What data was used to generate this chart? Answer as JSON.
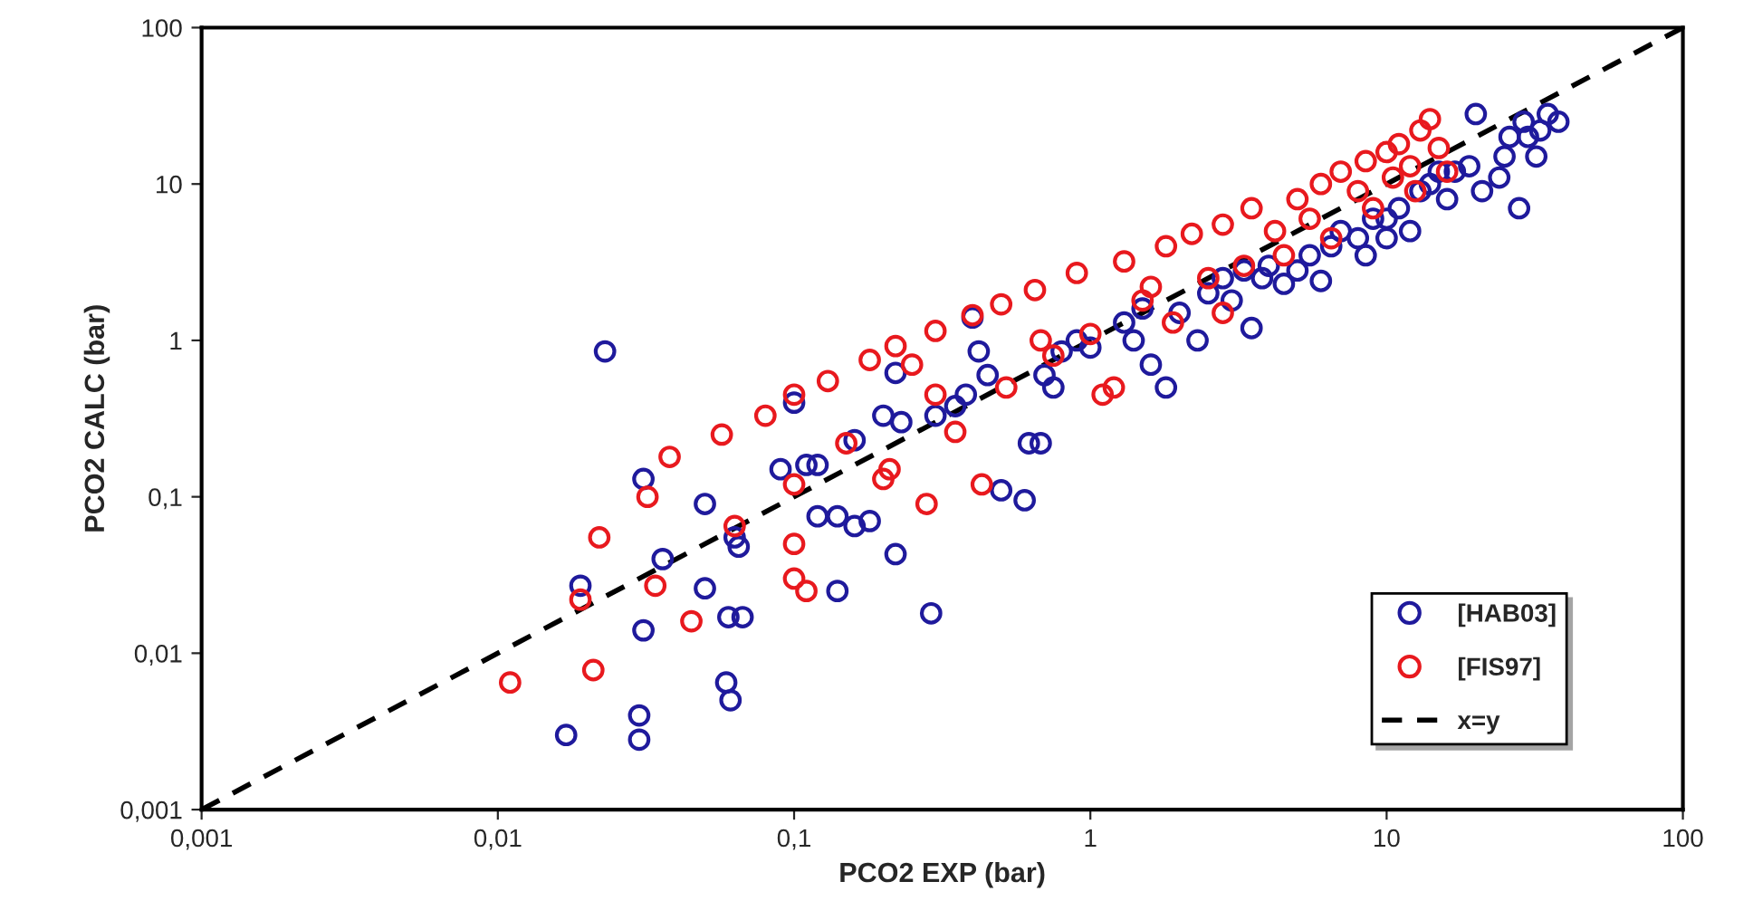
{
  "chart_data": {
    "type": "scatter",
    "xlabel": "PCO2 EXP (bar)",
    "ylabel": "PCO2 CALC (bar)",
    "log": "xy",
    "grid": false,
    "legend": "bottom right",
    "marker": "circle",
    "xlim": [
      0.001,
      100
    ],
    "ylim": [
      0.001,
      100
    ],
    "xticks": [
      {
        "value": 0.001,
        "label": "0,001"
      },
      {
        "value": 0.01,
        "label": "0,01"
      },
      {
        "value": 0.1,
        "label": "0,1"
      },
      1,
      10,
      100
    ],
    "yticks": [
      {
        "value": 0.001,
        "label": "0,001"
      },
      {
        "value": 0.01,
        "label": "0,01"
      },
      {
        "value": 0.1,
        "label": "0,1"
      },
      1,
      10,
      100
    ],
    "series": [
      {
        "name": "[HAB03]",
        "color": "#1f1a9c",
        "x": [
          0.023,
          0.017,
          0.03,
          0.03,
          0.019,
          0.031,
          0.031,
          0.036,
          0.05,
          0.05,
          0.059,
          0.061,
          0.06,
          0.067,
          0.063,
          0.065,
          0.09,
          0.1,
          0.11,
          0.12,
          0.12,
          0.14,
          0.14,
          0.16,
          0.16,
          0.18,
          0.2,
          0.22,
          0.22,
          0.23,
          0.29,
          0.3,
          0.35,
          0.38,
          0.4,
          0.42,
          0.45,
          0.5,
          0.6,
          0.62,
          0.68,
          0.7,
          0.75,
          0.8,
          0.9,
          1.0,
          1.3,
          1.4,
          1.5,
          1.6,
          1.8,
          2.0,
          2.3,
          2.5,
          2.8,
          3.0,
          3.3,
          3.5,
          3.8,
          4,
          4.5,
          5,
          5.5,
          6,
          6.5,
          7,
          8,
          8.5,
          9,
          10,
          10,
          11,
          12,
          13,
          14,
          15,
          16,
          17,
          19,
          20,
          21,
          24,
          25,
          26,
          28,
          29,
          30,
          32,
          33,
          35,
          38
        ],
        "values": [
          0.85,
          0.003,
          0.0028,
          0.004,
          0.027,
          0.014,
          0.13,
          0.04,
          0.09,
          0.026,
          0.0065,
          0.005,
          0.017,
          0.017,
          0.055,
          0.048,
          0.15,
          0.4,
          0.16,
          0.075,
          0.16,
          0.075,
          0.025,
          0.23,
          0.065,
          0.07,
          0.33,
          0.62,
          0.043,
          0.3,
          0.018,
          0.33,
          0.38,
          0.45,
          1.4,
          0.85,
          0.6,
          0.11,
          0.095,
          0.22,
          0.22,
          0.6,
          0.5,
          0.85,
          1.0,
          0.9,
          1.3,
          1.0,
          1.6,
          0.7,
          0.5,
          1.5,
          1.0,
          2.0,
          2.5,
          1.8,
          2.8,
          1.2,
          2.5,
          3,
          2.3,
          2.8,
          3.5,
          2.4,
          4,
          5,
          4.5,
          3.5,
          6,
          4.5,
          6,
          7,
          5,
          9,
          10,
          12,
          8,
          12,
          13,
          28,
          9,
          11,
          15,
          20,
          7,
          25,
          20,
          15,
          22,
          28,
          25
        ]
      },
      {
        "name": "[FIS97]",
        "color": "#e8191e",
        "x": [
          0.011,
          0.019,
          0.021,
          0.022,
          0.032,
          0.034,
          0.038,
          0.045,
          0.057,
          0.063,
          0.08,
          0.1,
          0.1,
          0.1,
          0.1,
          0.11,
          0.13,
          0.15,
          0.18,
          0.2,
          0.21,
          0.22,
          0.25,
          0.28,
          0.3,
          0.3,
          0.35,
          0.4,
          0.43,
          0.5,
          0.52,
          0.65,
          0.68,
          0.75,
          0.9,
          1.0,
          1.1,
          1.2,
          1.3,
          1.5,
          1.6,
          1.8,
          1.9,
          2.2,
          2.5,
          2.8,
          2.8,
          3.3,
          3.5,
          4.2,
          4.5,
          5,
          5.5,
          6,
          6.5,
          7,
          8,
          8.5,
          9,
          10,
          10.5,
          11,
          12,
          12.5,
          13,
          14,
          15,
          16
        ],
        "values": [
          0.0065,
          0.022,
          0.0078,
          0.055,
          0.1,
          0.027,
          0.18,
          0.016,
          0.25,
          0.065,
          0.33,
          0.45,
          0.12,
          0.05,
          0.03,
          0.025,
          0.55,
          0.22,
          0.75,
          0.13,
          0.15,
          0.92,
          0.7,
          0.09,
          1.15,
          0.45,
          0.26,
          1.45,
          0.12,
          1.7,
          0.5,
          2.1,
          1.0,
          0.8,
          2.7,
          1.1,
          0.45,
          0.5,
          3.2,
          1.8,
          2.2,
          4,
          1.3,
          4.8,
          2.5,
          1.5,
          5.5,
          3,
          7,
          5,
          3.5,
          8,
          6,
          10,
          4.5,
          12,
          9,
          14,
          7,
          16,
          11,
          18,
          13,
          9,
          22,
          26,
          17,
          12
        ]
      },
      {
        "name": "x=y",
        "type": "line",
        "color": "#000000",
        "line_style": "dashed",
        "marker": "none",
        "x": [
          0.001,
          100
        ],
        "values": [
          0.001,
          100
        ]
      }
    ]
  }
}
